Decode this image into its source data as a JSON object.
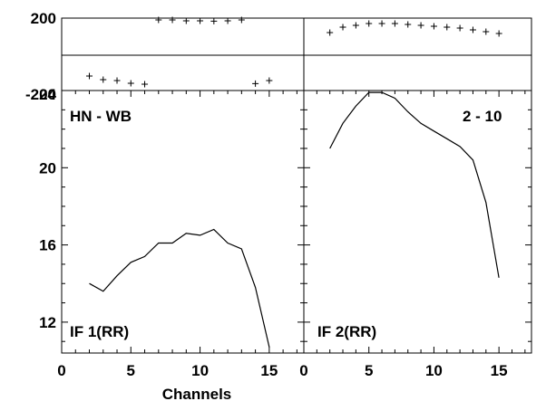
{
  "chart_data": {
    "type": "line",
    "xlabel": "Channels",
    "baseline": "HN - WB",
    "panels": [
      {
        "if_label": "IF 1(RR)",
        "phase": {
          "ylim": [
            -200,
            200
          ],
          "yticks": [
            200,
            -200
          ],
          "points": [
            {
              "x": 2,
              "y": -120
            },
            {
              "x": 3,
              "y": -140
            },
            {
              "x": 4,
              "y": -145
            },
            {
              "x": 5,
              "y": -160
            },
            {
              "x": 6,
              "y": -165
            },
            {
              "x": 7,
              "y": 190
            },
            {
              "x": 8,
              "y": 190
            },
            {
              "x": 9,
              "y": 185
            },
            {
              "x": 10,
              "y": 185
            },
            {
              "x": 11,
              "y": 183
            },
            {
              "x": 12,
              "y": 185
            },
            {
              "x": 13,
              "y": 190
            },
            {
              "x": 14,
              "y": -162
            },
            {
              "x": 15,
              "y": -145
            }
          ]
        },
        "amplitude": {
          "ylim": [
            10.4,
            24
          ],
          "yticks": [
            12,
            16,
            20,
            24
          ],
          "x": [
            2,
            3,
            4,
            5,
            6,
            7,
            8,
            9,
            10,
            11,
            12,
            13,
            14,
            15
          ],
          "y": [
            14.0,
            13.6,
            14.4,
            15.1,
            15.4,
            16.1,
            16.1,
            16.6,
            16.5,
            16.8,
            16.1,
            15.8,
            13.8,
            10.7
          ]
        }
      },
      {
        "if_label": "IF 2(RR)",
        "corner_label": "2 - 10",
        "phase": {
          "ylim": [
            -200,
            200
          ],
          "points": [
            {
              "x": 2,
              "y": 120
            },
            {
              "x": 3,
              "y": 150
            },
            {
              "x": 4,
              "y": 160
            },
            {
              "x": 5,
              "y": 170
            },
            {
              "x": 6,
              "y": 170
            },
            {
              "x": 7,
              "y": 170
            },
            {
              "x": 8,
              "y": 165
            },
            {
              "x": 9,
              "y": 160
            },
            {
              "x": 10,
              "y": 155
            },
            {
              "x": 11,
              "y": 150
            },
            {
              "x": 12,
              "y": 145
            },
            {
              "x": 13,
              "y": 135
            },
            {
              "x": 14,
              "y": 125
            },
            {
              "x": 15,
              "y": 115
            }
          ]
        },
        "amplitude": {
          "ylim": [
            10.4,
            24
          ],
          "x": [
            2,
            3,
            4,
            5,
            6,
            7,
            8,
            9,
            10,
            11,
            12,
            13,
            14,
            15
          ],
          "y": [
            21.0,
            22.3,
            23.2,
            23.9,
            23.9,
            23.6,
            22.9,
            22.3,
            21.9,
            21.5,
            21.1,
            20.4,
            18.2,
            14.3
          ]
        }
      }
    ],
    "xlim": [
      0,
      17.5
    ],
    "xticks": [
      0,
      5,
      10,
      15
    ]
  }
}
